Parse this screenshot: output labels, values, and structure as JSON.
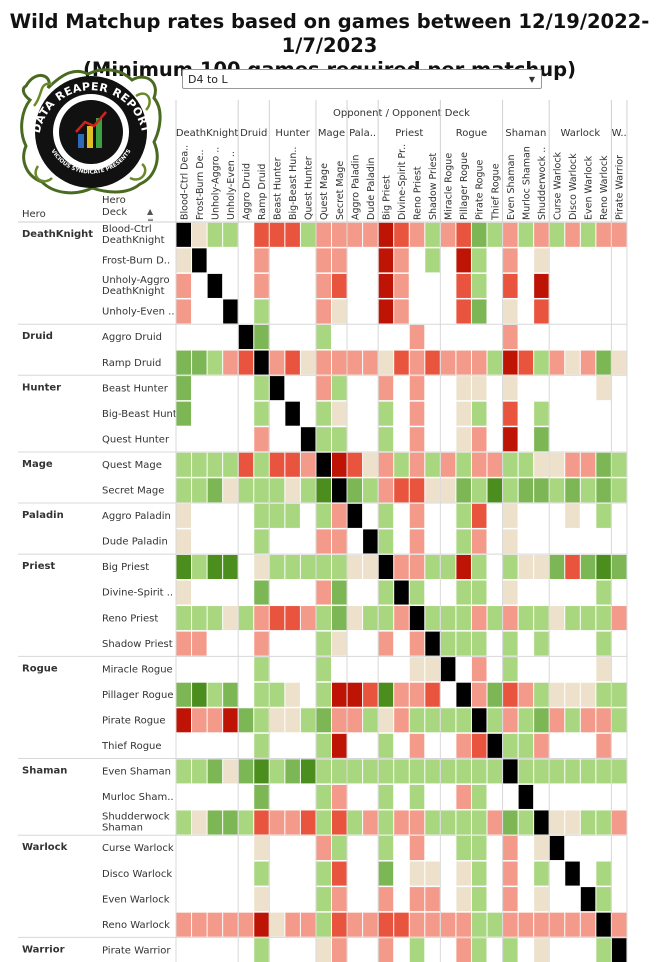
{
  "title": {
    "line1": "Wild Matchup rates based on games between 12/19/2022-1/7/2023",
    "line2": "(Minimum 100 games required per matchup)"
  },
  "logo": {
    "text_top": "DATA REAPER REPORT",
    "text_bottom": "VICIOUS SYNDICATE PRESENTS"
  },
  "filter": {
    "value": "D4 to L"
  },
  "headers": {
    "opponent": "Opponent / Opponent Deck",
    "hero": "Hero",
    "deck_line1": "Hero",
    "deck_line2": "Deck"
  },
  "sort_icon": "sort-ascending-icon",
  "colors": {
    "dark_green": "#4b8e1d",
    "mid_green": "#7cb655",
    "light_green": "#a9d77f",
    "beige": "#ede1cc",
    "light_red": "#f49a8a",
    "mid_red": "#e8543e",
    "dark_red": "#be1406",
    "self": "#000000",
    "empty": "#ffffff"
  },
  "chart_data": {
    "type": "heatmap",
    "value_scale": "matchup win rate color bins: -3 strongly unfavored (dark red) ... 0 even (beige) ... +3 strongly favored (dark green); 9 = mirror matchup; null = fewer than 100 games",
    "classes": [
      {
        "name": "DeathKnight",
        "col_label": "DeathKnight",
        "decks": [
          "Blood-Ctrl DeathKnight",
          "Frost-Burn DeathKnight",
          "Unholy-Aggro DeathKnight",
          "Unholy-Even DeathKnight"
        ]
      },
      {
        "name": "Druid",
        "col_label": "Druid",
        "decks": [
          "Aggro Druid",
          "Ramp Druid"
        ]
      },
      {
        "name": "Hunter",
        "col_label": "Hunter",
        "decks": [
          "Beast Hunter",
          "Big-Beast Hunter",
          "Quest Hunter"
        ]
      },
      {
        "name": "Mage",
        "col_label": "Mage",
        "decks": [
          "Quest Mage",
          "Secret Mage"
        ]
      },
      {
        "name": "Paladin",
        "col_label": "Pala..",
        "decks": [
          "Aggro Paladin",
          "Dude Paladin"
        ]
      },
      {
        "name": "Priest",
        "col_label": "Priest",
        "decks": [
          "Big Priest",
          "Divine-Spirit Priest",
          "Reno Priest",
          "Shadow Priest"
        ]
      },
      {
        "name": "Rogue",
        "col_label": "Rogue",
        "decks": [
          "Miracle Rogue",
          "Pillager Rogue",
          "Pirate Rogue",
          "Thief Rogue"
        ]
      },
      {
        "name": "Shaman",
        "col_label": "Shaman",
        "decks": [
          "Even Shaman",
          "Murloc Shaman",
          "Shudderwock Shaman"
        ]
      },
      {
        "name": "Warlock",
        "col_label": "Warlock",
        "decks": [
          "Curse Warlock",
          "Disco Warlock",
          "Even Warlock",
          "Reno Warlock"
        ]
      },
      {
        "name": "Warrior",
        "col_label": "W..",
        "decks": [
          "Pirate Warrior"
        ]
      }
    ],
    "row_labels": [
      "Blood-Ctrl DeathKnight",
      "Frost-Burn D..",
      "Unholy-Aggro DeathKnight",
      "Unholy-Even ..",
      "Aggro Druid",
      "Ramp Druid",
      "Beast Hunter",
      "Big-Beast Hunter",
      "Quest Hunter",
      "Quest Mage",
      "Secret Mage",
      "Aggro Paladin",
      "Dude Paladin",
      "Big Priest",
      "Divine-Spirit ..",
      "Reno Priest",
      "Shadow Priest",
      "Miracle Rogue",
      "Pillager Rogue",
      "Pirate Rogue",
      "Thief Rogue",
      "Even Shaman",
      "Murloc Sham..",
      "Shudderwock Shaman",
      "Curse Warlock",
      "Disco Warlock",
      "Even Warlock",
      "Reno Warlock",
      "Pirate Warrior"
    ],
    "col_labels": [
      "Blood-Ctrl Dea..",
      "Frost-Burn De..",
      "Unholy-Aggro ..",
      "Unholy-Even ..",
      "Aggro Druid",
      "Ramp Druid",
      "Beast Hunter",
      "Big-Beast Hun..",
      "Quest Hunter",
      "Quest Mage",
      "Secret Mage",
      "Aggro Paladin",
      "Dude Paladin",
      "Big Priest",
      "Divine-Spirit Pr..",
      "Reno Priest",
      "Shadow Priest",
      "Miracle Rogue",
      "Pillager Rogue",
      "Pirate Rogue",
      "Thief Rogue",
      "Even Shaman",
      "Murloc Shaman",
      "Shudderwock ..",
      "Curse Warlock",
      "Disco Warlock",
      "Even Warlock",
      "Reno Warlock",
      "Pirate Warrior"
    ],
    "matrix": [
      [
        9,
        0,
        1,
        1,
        null,
        -2,
        -2,
        -2,
        1,
        -1,
        -1,
        -1,
        -1,
        -3,
        -2,
        -1,
        1,
        -1,
        -2,
        2,
        1,
        -1,
        1,
        -1,
        1,
        -1,
        1,
        -1,
        -1
      ],
      [
        0,
        9,
        null,
        null,
        null,
        -1,
        null,
        null,
        null,
        -1,
        -1,
        null,
        null,
        -3,
        -1,
        null,
        1,
        null,
        -3,
        1,
        null,
        -1,
        null,
        0,
        null,
        null,
        null,
        null,
        null
      ],
      [
        -1,
        null,
        9,
        null,
        null,
        -1,
        null,
        null,
        null,
        -1,
        -2,
        null,
        null,
        -3,
        -1,
        null,
        null,
        null,
        -2,
        1,
        null,
        -2,
        null,
        -3,
        null,
        null,
        null,
        null,
        null
      ],
      [
        -1,
        null,
        null,
        9,
        null,
        1,
        null,
        null,
        null,
        -1,
        0,
        null,
        null,
        -3,
        -1,
        null,
        null,
        null,
        -2,
        2,
        null,
        0,
        null,
        -2,
        null,
        null,
        null,
        null,
        null
      ],
      [
        null,
        null,
        null,
        null,
        9,
        2,
        null,
        null,
        null,
        1,
        null,
        null,
        null,
        null,
        null,
        -1,
        null,
        null,
        null,
        null,
        null,
        -1,
        null,
        null,
        null,
        null,
        null,
        null,
        null
      ],
      [
        2,
        2,
        1,
        -1,
        -2,
        9,
        -1,
        -2,
        0,
        -1,
        -1,
        -1,
        -1,
        0,
        -2,
        -1,
        -2,
        -1,
        -1,
        -1,
        1,
        -3,
        -2,
        1,
        -1,
        0,
        -1,
        2,
        0
      ],
      [
        2,
        null,
        null,
        null,
        null,
        1,
        9,
        null,
        null,
        -1,
        1,
        null,
        null,
        -1,
        null,
        -1,
        null,
        null,
        0,
        0,
        null,
        0,
        null,
        null,
        null,
        null,
        null,
        0,
        null
      ],
      [
        2,
        null,
        null,
        null,
        null,
        1,
        null,
        9,
        null,
        1,
        0,
        null,
        null,
        1,
        null,
        -1,
        null,
        null,
        0,
        1,
        null,
        -2,
        null,
        1,
        null,
        null,
        null,
        null,
        null
      ],
      [
        null,
        null,
        null,
        null,
        null,
        -1,
        null,
        null,
        9,
        1,
        1,
        null,
        null,
        1,
        null,
        -1,
        null,
        null,
        0,
        -1,
        null,
        -3,
        null,
        2,
        null,
        null,
        null,
        null,
        null
      ],
      [
        1,
        1,
        1,
        1,
        -2,
        1,
        -2,
        -2,
        -1,
        9,
        -3,
        -2,
        0,
        -1,
        1,
        -1,
        1,
        -1,
        1,
        -1,
        -1,
        1,
        1,
        0,
        0,
        -1,
        -1,
        2,
        1
      ],
      [
        1,
        1,
        2,
        0,
        1,
        1,
        1,
        0,
        1,
        3,
        9,
        2,
        1,
        -1,
        -2,
        -2,
        0,
        0,
        2,
        1,
        3,
        1,
        2,
        2,
        1,
        2,
        1,
        2,
        1
      ],
      [
        0,
        null,
        null,
        null,
        null,
        1,
        1,
        1,
        null,
        1,
        -1,
        9,
        null,
        1,
        null,
        -1,
        null,
        null,
        1,
        -2,
        null,
        0,
        null,
        null,
        null,
        0,
        null,
        1,
        null
      ],
      [
        0,
        null,
        null,
        null,
        null,
        1,
        null,
        null,
        null,
        -1,
        -1,
        null,
        9,
        1,
        null,
        -1,
        null,
        null,
        1,
        -1,
        null,
        0,
        null,
        null,
        null,
        null,
        null,
        null,
        null
      ],
      [
        3,
        1,
        3,
        3,
        null,
        0,
        1,
        1,
        1,
        1,
        1,
        0,
        0,
        9,
        -1,
        -1,
        1,
        1,
        -3,
        1,
        null,
        1,
        0,
        0,
        2,
        -2,
        2,
        3,
        2
      ],
      [
        0,
        null,
        null,
        null,
        null,
        2,
        null,
        null,
        null,
        -1,
        2,
        null,
        null,
        1,
        9,
        1,
        null,
        null,
        1,
        1,
        null,
        0,
        null,
        null,
        null,
        null,
        null,
        1,
        null
      ],
      [
        1,
        1,
        1,
        0,
        1,
        -1,
        -2,
        -2,
        -1,
        1,
        2,
        0,
        1,
        1,
        -1,
        9,
        1,
        1,
        1,
        -1,
        1,
        -1,
        1,
        1,
        0,
        1,
        1,
        1,
        -1
      ],
      [
        -1,
        -1,
        null,
        null,
        null,
        -1,
        null,
        null,
        null,
        1,
        0,
        null,
        null,
        -1,
        null,
        -1,
        9,
        1,
        1,
        1,
        null,
        1,
        null,
        1,
        null,
        null,
        null,
        1,
        null
      ],
      [
        null,
        null,
        null,
        null,
        null,
        1,
        null,
        null,
        null,
        1,
        null,
        null,
        null,
        null,
        null,
        0,
        0,
        9,
        null,
        -1,
        null,
        1,
        null,
        null,
        null,
        null,
        null,
        0,
        null
      ],
      [
        2,
        3,
        1,
        2,
        null,
        1,
        1,
        0,
        null,
        1,
        -3,
        -3,
        -2,
        3,
        -1,
        -1,
        -2,
        null,
        9,
        -1,
        2,
        -2,
        -1,
        1,
        0,
        0,
        0,
        1,
        1
      ],
      [
        -3,
        -1,
        -1,
        -3,
        2,
        1,
        0,
        0,
        1,
        2,
        -1,
        -1,
        1,
        0,
        -1,
        1,
        1,
        1,
        1,
        9,
        1,
        -1,
        1,
        2,
        -1,
        1,
        -1,
        -1,
        1
      ],
      [
        null,
        null,
        null,
        null,
        null,
        1,
        null,
        null,
        null,
        1,
        -3,
        null,
        null,
        1,
        null,
        -1,
        null,
        null,
        -1,
        -2,
        9,
        1,
        1,
        -1,
        null,
        null,
        null,
        -1,
        null
      ],
      [
        1,
        1,
        2,
        0,
        2,
        3,
        1,
        2,
        3,
        1,
        1,
        1,
        1,
        1,
        1,
        1,
        1,
        1,
        1,
        1,
        1,
        9,
        1,
        1,
        1,
        1,
        1,
        1,
        1
      ],
      [
        null,
        null,
        null,
        null,
        null,
        2,
        null,
        null,
        null,
        1,
        -1,
        null,
        null,
        1,
        null,
        1,
        null,
        null,
        -1,
        1,
        null,
        null,
        9,
        null,
        null,
        null,
        null,
        null,
        null
      ],
      [
        1,
        0,
        2,
        2,
        1,
        -2,
        -1,
        -1,
        -2,
        1,
        -2,
        1,
        -1,
        1,
        -1,
        -1,
        1,
        1,
        1,
        1,
        -1,
        2,
        1,
        9,
        0,
        0,
        1,
        1,
        -1
      ],
      [
        null,
        null,
        null,
        null,
        null,
        0,
        null,
        null,
        null,
        -1,
        1,
        null,
        null,
        1,
        null,
        -1,
        null,
        null,
        1,
        1,
        null,
        -1,
        null,
        0,
        9,
        null,
        null,
        null,
        null
      ],
      [
        null,
        null,
        null,
        null,
        null,
        1,
        null,
        null,
        null,
        1,
        -2,
        null,
        null,
        2,
        null,
        0,
        0,
        null,
        0,
        1,
        null,
        -1,
        null,
        1,
        null,
        9,
        null,
        1,
        null
      ],
      [
        null,
        null,
        null,
        null,
        null,
        0,
        null,
        null,
        null,
        1,
        -1,
        null,
        null,
        -1,
        null,
        -1,
        -1,
        null,
        0,
        1,
        null,
        -1,
        null,
        0,
        null,
        null,
        9,
        1,
        null
      ],
      [
        -1,
        -1,
        -1,
        -1,
        -1,
        -3,
        0,
        -1,
        -1,
        1,
        -2,
        -1,
        -1,
        -2,
        -2,
        -1,
        -1,
        -1,
        -1,
        1,
        1,
        -1,
        -1,
        -1,
        -1,
        -1,
        -1,
        9,
        -1
      ],
      [
        null,
        null,
        null,
        null,
        null,
        1,
        null,
        null,
        null,
        0,
        -1,
        null,
        null,
        -1,
        null,
        1,
        null,
        null,
        -1,
        1,
        null,
        1,
        null,
        0,
        null,
        null,
        null,
        1,
        9
      ]
    ]
  }
}
